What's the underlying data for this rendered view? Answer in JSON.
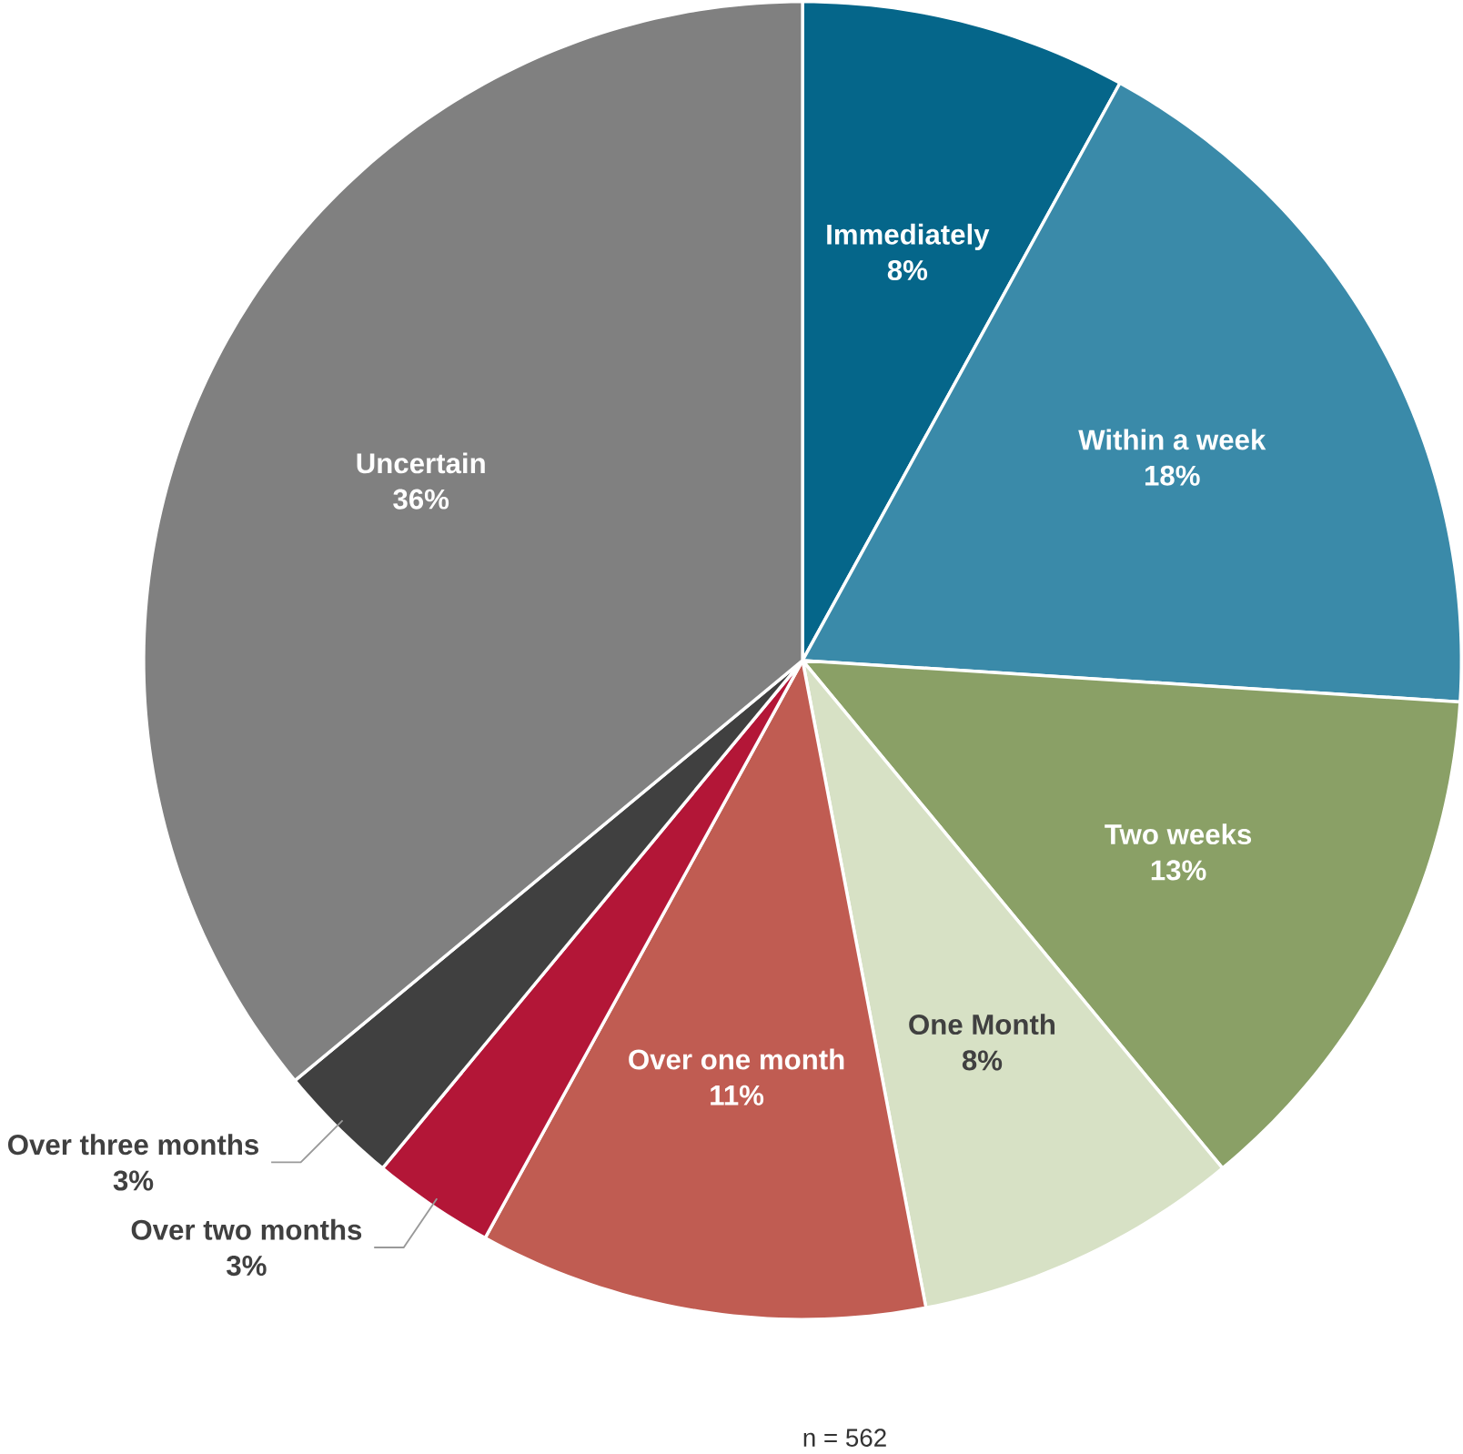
{
  "chart_data": {
    "type": "pie",
    "categories": [
      "Immediately",
      "Within a week",
      "Two weeks",
      "One Month",
      "Over one month",
      "Over two months",
      "Over three months",
      "Uncertain"
    ],
    "values": [
      8,
      18,
      13,
      8,
      11,
      3,
      3,
      36
    ],
    "colors": [
      "#05668a",
      "#3a8aa9",
      "#8aa066",
      "#d7e1c5",
      "#c05c52",
      "#b31637",
      "#404040",
      "#808080"
    ],
    "value_labels": [
      "8%",
      "18%",
      "13%",
      "8%",
      "11%",
      "3%",
      "3%",
      "36%"
    ],
    "annotations": [
      "n = 562"
    ]
  }
}
